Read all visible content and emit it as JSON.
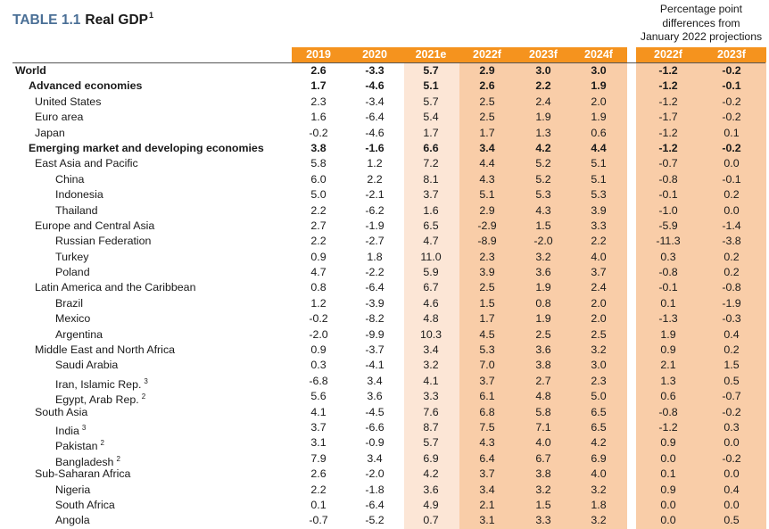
{
  "title": {
    "label": "TABLE 1.1",
    "name": "Real GDP",
    "footnote": "1"
  },
  "diff_header": [
    "Percentage point",
    "differences from",
    "January 2022 projections"
  ],
  "columns": [
    "2019",
    "2020",
    "2021e",
    "2022f",
    "2023f",
    "2024f"
  ],
  "diff_columns": [
    "2022f",
    "2023f"
  ],
  "colors": {
    "header_orange": "#f5931e",
    "light_band": "#fce6d6",
    "peach_band": "#f9cda8",
    "title_blue": "#4a6f96"
  },
  "rows": [
    {
      "name": "World",
      "level": 0,
      "bold": true,
      "values": [
        "2.6",
        "-3.3",
        "5.7",
        "2.9",
        "3.0",
        "3.0"
      ],
      "diff": [
        "-1.2",
        "-0.2"
      ]
    },
    {
      "name": "Advanced economies",
      "level": 1,
      "bold": true,
      "values": [
        "1.7",
        "-4.6",
        "5.1",
        "2.6",
        "2.2",
        "1.9"
      ],
      "diff": [
        "-1.2",
        "-0.1"
      ]
    },
    {
      "name": "United States",
      "level": 2,
      "values": [
        "2.3",
        "-3.4",
        "5.7",
        "2.5",
        "2.4",
        "2.0"
      ],
      "diff": [
        "-1.2",
        "-0.2"
      ]
    },
    {
      "name": "Euro area",
      "level": 2,
      "values": [
        "1.6",
        "-6.4",
        "5.4",
        "2.5",
        "1.9",
        "1.9"
      ],
      "diff": [
        "-1.7",
        "-0.2"
      ]
    },
    {
      "name": "Japan",
      "level": 2,
      "values": [
        "-0.2",
        "-4.6",
        "1.7",
        "1.7",
        "1.3",
        "0.6"
      ],
      "diff": [
        "-1.2",
        "0.1"
      ]
    },
    {
      "name": "Emerging market and developing economies",
      "level": 1,
      "bold": true,
      "values": [
        "3.8",
        "-1.6",
        "6.6",
        "3.4",
        "4.2",
        "4.4"
      ],
      "diff": [
        "-1.2",
        "-0.2"
      ]
    },
    {
      "name": "East Asia and Pacific",
      "level": 2,
      "values": [
        "5.8",
        "1.2",
        "7.2",
        "4.4",
        "5.2",
        "5.1"
      ],
      "diff": [
        "-0.7",
        "0.0"
      ]
    },
    {
      "name": "China",
      "level": 3,
      "values": [
        "6.0",
        "2.2",
        "8.1",
        "4.3",
        "5.2",
        "5.1"
      ],
      "diff": [
        "-0.8",
        "-0.1"
      ]
    },
    {
      "name": "Indonesia",
      "level": 3,
      "values": [
        "5.0",
        "-2.1",
        "3.7",
        "5.1",
        "5.3",
        "5.3"
      ],
      "diff": [
        "-0.1",
        "0.2"
      ]
    },
    {
      "name": "Thailand",
      "level": 3,
      "values": [
        "2.2",
        "-6.2",
        "1.6",
        "2.9",
        "4.3",
        "3.9"
      ],
      "diff": [
        "-1.0",
        "0.0"
      ]
    },
    {
      "name": "Europe and Central Asia",
      "level": 2,
      "values": [
        "2.7",
        "-1.9",
        "6.5",
        "-2.9",
        "1.5",
        "3.3"
      ],
      "diff": [
        "-5.9",
        "-1.4"
      ]
    },
    {
      "name": "Russian Federation",
      "level": 3,
      "values": [
        "2.2",
        "-2.7",
        "4.7",
        "-8.9",
        "-2.0",
        "2.2"
      ],
      "diff": [
        "-11.3",
        "-3.8"
      ]
    },
    {
      "name": "Turkey",
      "level": 3,
      "values": [
        "0.9",
        "1.8",
        "11.0",
        "2.3",
        "3.2",
        "4.0"
      ],
      "diff": [
        "0.3",
        "0.2"
      ]
    },
    {
      "name": "Poland",
      "level": 3,
      "values": [
        "4.7",
        "-2.2",
        "5.9",
        "3.9",
        "3.6",
        "3.7"
      ],
      "diff": [
        "-0.8",
        "0.2"
      ]
    },
    {
      "name": "Latin America and the Caribbean",
      "level": 2,
      "values": [
        "0.8",
        "-6.4",
        "6.7",
        "2.5",
        "1.9",
        "2.4"
      ],
      "diff": [
        "-0.1",
        "-0.8"
      ]
    },
    {
      "name": "Brazil",
      "level": 3,
      "values": [
        "1.2",
        "-3.9",
        "4.6",
        "1.5",
        "0.8",
        "2.0"
      ],
      "diff": [
        "0.1",
        "-1.9"
      ]
    },
    {
      "name": "Mexico",
      "level": 3,
      "values": [
        "-0.2",
        "-8.2",
        "4.8",
        "1.7",
        "1.9",
        "2.0"
      ],
      "diff": [
        "-1.3",
        "-0.3"
      ]
    },
    {
      "name": "Argentina",
      "level": 3,
      "values": [
        "-2.0",
        "-9.9",
        "10.3",
        "4.5",
        "2.5",
        "2.5"
      ],
      "diff": [
        "1.9",
        "0.4"
      ]
    },
    {
      "name": "Middle East and North Africa",
      "level": 2,
      "values": [
        "0.9",
        "-3.7",
        "3.4",
        "5.3",
        "3.6",
        "3.2"
      ],
      "diff": [
        "0.9",
        "0.2"
      ]
    },
    {
      "name": "Saudi Arabia",
      "level": 3,
      "values": [
        "0.3",
        "-4.1",
        "3.2",
        "7.0",
        "3.8",
        "3.0"
      ],
      "diff": [
        "2.1",
        "1.5"
      ]
    },
    {
      "name": "Iran, Islamic Rep.",
      "note": "3",
      "level": 3,
      "values": [
        "-6.8",
        "3.4",
        "4.1",
        "3.7",
        "2.7",
        "2.3"
      ],
      "diff": [
        "1.3",
        "0.5"
      ]
    },
    {
      "name": "Egypt, Arab Rep.",
      "note": "2",
      "level": 3,
      "values": [
        "5.6",
        "3.6",
        "3.3",
        "6.1",
        "4.8",
        "5.0"
      ],
      "diff": [
        "0.6",
        "-0.7"
      ]
    },
    {
      "name": "South Asia",
      "level": 2,
      "values": [
        "4.1",
        "-4.5",
        "7.6",
        "6.8",
        "5.8",
        "6.5"
      ],
      "diff": [
        "-0.8",
        "-0.2"
      ]
    },
    {
      "name": "India",
      "note": "3",
      "level": 3,
      "values": [
        "3.7",
        "-6.6",
        "8.7",
        "7.5",
        "7.1",
        "6.5"
      ],
      "diff": [
        "-1.2",
        "0.3"
      ]
    },
    {
      "name": "Pakistan",
      "note": "2",
      "level": 3,
      "values": [
        "3.1",
        "-0.9",
        "5.7",
        "4.3",
        "4.0",
        "4.2"
      ],
      "diff": [
        "0.9",
        "0.0"
      ]
    },
    {
      "name": "Bangladesh",
      "note": "2",
      "level": 3,
      "values": [
        "7.9",
        "3.4",
        "6.9",
        "6.4",
        "6.7",
        "6.9"
      ],
      "diff": [
        "0.0",
        "-0.2"
      ]
    },
    {
      "name": "Sub-Saharan Africa",
      "level": 2,
      "values": [
        "2.6",
        "-2.0",
        "4.2",
        "3.7",
        "3.8",
        "4.0"
      ],
      "diff": [
        "0.1",
        "0.0"
      ]
    },
    {
      "name": "Nigeria",
      "level": 3,
      "values": [
        "2.2",
        "-1.8",
        "3.6",
        "3.4",
        "3.2",
        "3.2"
      ],
      "diff": [
        "0.9",
        "0.4"
      ]
    },
    {
      "name": "South Africa",
      "level": 3,
      "values": [
        "0.1",
        "-6.4",
        "4.9",
        "2.1",
        "1.5",
        "1.8"
      ],
      "diff": [
        "0.0",
        "0.0"
      ]
    },
    {
      "name": "Angola",
      "level": 3,
      "values": [
        "-0.7",
        "-5.2",
        "0.7",
        "3.1",
        "3.3",
        "3.2"
      ],
      "diff": [
        "0.0",
        "0.5"
      ]
    }
  ]
}
